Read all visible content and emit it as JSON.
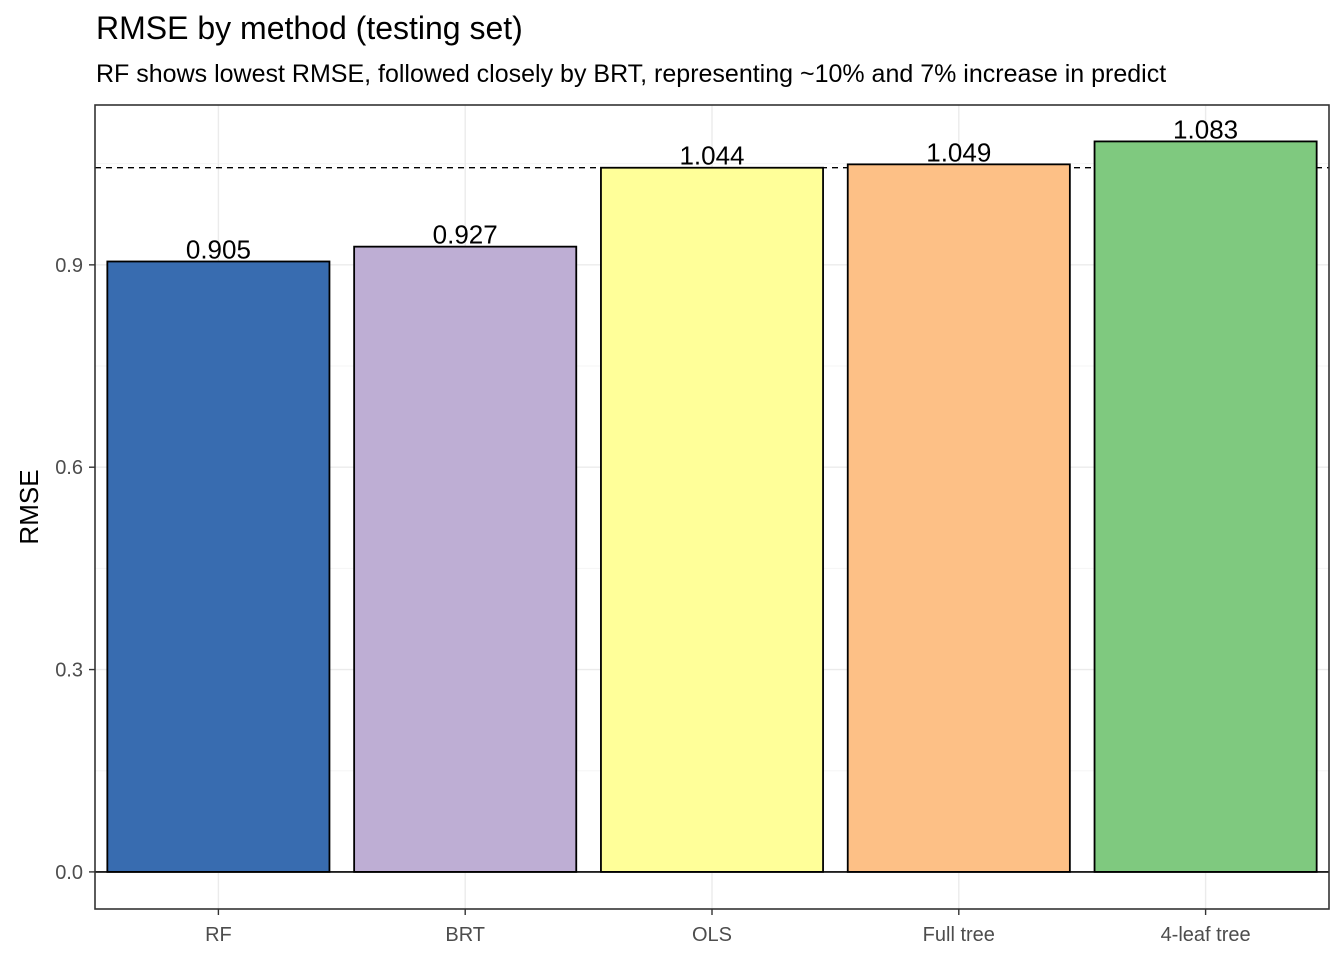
{
  "title": "RMSE by method (testing set)",
  "subtitle": "RF shows lowest RMSE, followed closely by BRT, representing ~10% and 7% increase in predict",
  "chart_data": {
    "type": "bar",
    "title": "RMSE by method (testing set)",
    "subtitle": "RF shows lowest RMSE, followed closely by BRT, representing ~10% and 7% increase in predict",
    "xlabel": "",
    "ylabel": "RMSE",
    "categories": [
      "RF",
      "BRT",
      "OLS",
      "Full tree",
      "4-leaf tree"
    ],
    "values": [
      0.905,
      0.927,
      1.044,
      1.049,
      1.083
    ],
    "data_labels": [
      "0.905",
      "0.927",
      "1.044",
      "1.049",
      "1.083"
    ],
    "colors": [
      "#386CB0",
      "#BEAED4",
      "#FFFF99",
      "#FDC086",
      "#7FC97F"
    ],
    "yticks": [
      0.0,
      0.3,
      0.6,
      0.9
    ],
    "ytick_labels": [
      "0.0",
      "0.3",
      "0.6",
      "0.9"
    ],
    "ylim": [
      -0.055,
      1.137
    ],
    "reference_line": {
      "y": 1.044,
      "style": "dashed"
    },
    "zero_line": true,
    "grid": true,
    "legend": "none"
  }
}
